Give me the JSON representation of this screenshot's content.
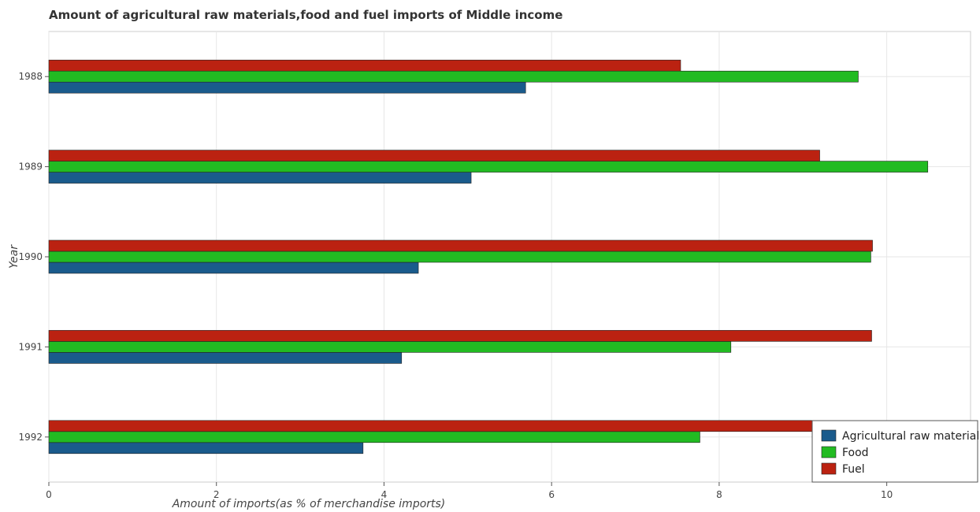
{
  "chart_data": {
    "type": "bar",
    "orientation": "horizontal",
    "title": "Amount of agricultural raw materials,food and fuel imports of Middle income",
    "xlabel": "Amount of imports(as % of merchandise imports)",
    "ylabel": "Year",
    "xlim": [
      0,
      11
    ],
    "xticks": [
      0,
      2,
      4,
      6,
      8,
      10
    ],
    "categories": [
      "1988",
      "1989",
      "1990",
      "1991",
      "1992"
    ],
    "series": [
      {
        "name": "Agricultural raw materials",
        "color": "#1a5b8c",
        "values": [
          5.69,
          5.04,
          4.41,
          4.21,
          3.75
        ]
      },
      {
        "name": "Food",
        "color": "#22bb22",
        "values": [
          9.66,
          10.49,
          9.81,
          8.14,
          7.77
        ]
      },
      {
        "name": "Fuel",
        "color": "#bb2211",
        "values": [
          7.54,
          9.2,
          9.83,
          9.82,
          9.74
        ]
      }
    ],
    "grid": true,
    "legend_position": "bottom-right"
  }
}
